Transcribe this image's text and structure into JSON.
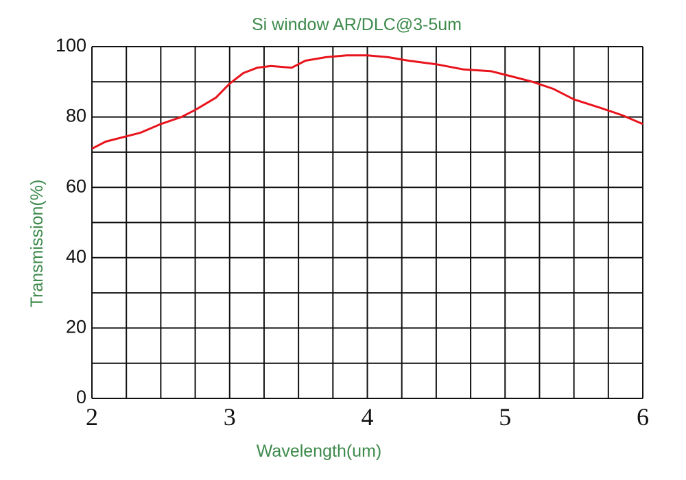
{
  "chart_data": {
    "type": "line",
    "title": "Si window AR/DLC@3-5um",
    "x_label": "Wavelength(um)",
    "y_label": "Transmission(%)",
    "x": [
      2,
      2.1,
      2.25,
      2.35,
      2.5,
      2.65,
      2.75,
      2.9,
      3.0,
      3.1,
      3.2,
      3.3,
      3.45,
      3.55,
      3.7,
      3.85,
      4.0,
      4.15,
      4.3,
      4.5,
      4.7,
      4.9,
      5.0,
      5.2,
      5.35,
      5.5,
      5.7,
      5.85,
      6.0
    ],
    "series": [
      {
        "color": "#e8141c",
        "values": [
          71,
          73,
          74.5,
          75.5,
          78,
          80,
          82,
          85.5,
          89.5,
          92.5,
          94,
          94.5,
          94,
          96,
          97,
          97.5,
          97.5,
          97,
          96,
          95,
          93.5,
          93,
          92,
          90,
          88,
          85,
          82.5,
          80.5,
          78
        ]
      }
    ],
    "xlim": [
      2,
      6
    ],
    "ylim": [
      0,
      100
    ],
    "xticks": [
      2,
      3,
      4,
      5,
      6
    ],
    "yticks": [
      0,
      20,
      40,
      60,
      80,
      100
    ],
    "xminor": [
      2.25,
      2.5,
      2.75,
      3.25,
      3.5,
      3.75,
      4.25,
      4.5,
      4.75,
      5.25,
      5.5,
      5.75
    ],
    "yminor": [
      10,
      30,
      50,
      70,
      90
    ],
    "grid": true
  }
}
